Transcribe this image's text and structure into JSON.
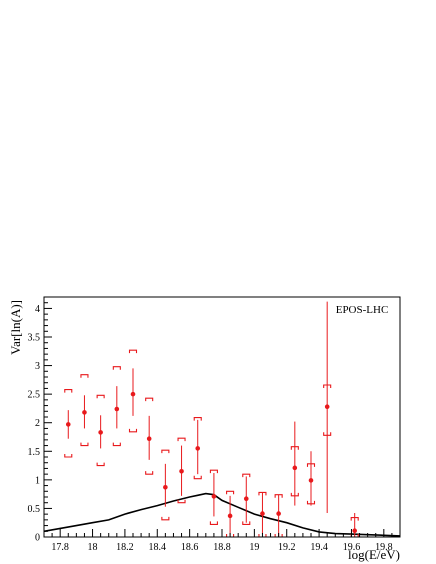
{
  "chart_data": {
    "type": "scatter",
    "xlabel": "log(E/eV)",
    "ylabel": "Var[ln(A)]",
    "xlim": [
      17.7,
      19.9
    ],
    "ylim": [
      0,
      4.2
    ],
    "x_ticks": [
      17.8,
      18,
      18.2,
      18.4,
      18.6,
      18.8,
      19,
      19.2,
      19.4,
      19.6,
      19.8
    ],
    "y_ticks": [
      0,
      0.5,
      1,
      1.5,
      2,
      2.5,
      3,
      3.5,
      4
    ],
    "legend": "EPOS-LHC",
    "colors": {
      "data": "#e8191c",
      "model": "#000000"
    },
    "series": [
      {
        "kind": "points",
        "x": [
          17.85,
          17.95,
          18.05,
          18.15,
          18.25,
          18.35,
          18.45,
          18.55,
          18.65,
          18.75,
          18.85,
          18.95,
          19.05,
          19.15,
          19.25,
          19.35,
          19.45,
          19.62
        ],
        "y": [
          1.97,
          2.18,
          1.83,
          2.24,
          2.5,
          1.72,
          0.87,
          1.15,
          1.55,
          0.71,
          0.37,
          0.67,
          0.41,
          0.41,
          1.21,
          0.99,
          2.28,
          0.11
        ],
        "stat_low": [
          1.72,
          1.9,
          1.55,
          1.9,
          2.12,
          1.35,
          0.53,
          0.72,
          1.1,
          0.36,
          0.03,
          0.25,
          0.05,
          0.0,
          0.55,
          0.55,
          0.42,
          0.0
        ],
        "stat_high": [
          2.22,
          2.48,
          2.13,
          2.64,
          2.95,
          2.12,
          1.28,
          1.6,
          2.05,
          1.12,
          0.72,
          1.06,
          0.78,
          0.74,
          2.02,
          1.5,
          4.12,
          0.42
        ],
        "sys_low": [
          1.4,
          1.6,
          1.25,
          1.6,
          1.84,
          1.1,
          0.3,
          0.6,
          1.02,
          0.22,
          0.0,
          0.22,
          0.0,
          0.0,
          0.72,
          0.58,
          1.78,
          0.0
        ],
        "sys_high": [
          2.58,
          2.84,
          2.48,
          2.98,
          3.27,
          2.43,
          1.52,
          1.73,
          2.09,
          1.17,
          0.8,
          1.1,
          0.78,
          0.74,
          1.58,
          1.28,
          2.66,
          0.34
        ]
      },
      {
        "kind": "line",
        "name": "EPOS-LHC",
        "x": [
          17.7,
          17.8,
          17.9,
          18.0,
          18.1,
          18.2,
          18.3,
          18.4,
          18.5,
          18.6,
          18.65,
          18.7,
          18.75,
          18.8,
          18.9,
          19.0,
          19.1,
          19.2,
          19.3,
          19.4,
          19.5,
          19.6,
          19.7,
          19.8,
          19.9
        ],
        "y": [
          0.1,
          0.15,
          0.2,
          0.25,
          0.3,
          0.4,
          0.48,
          0.55,
          0.63,
          0.7,
          0.73,
          0.76,
          0.74,
          0.64,
          0.52,
          0.4,
          0.32,
          0.25,
          0.16,
          0.09,
          0.06,
          0.05,
          0.04,
          0.03,
          0.02
        ]
      }
    ]
  }
}
